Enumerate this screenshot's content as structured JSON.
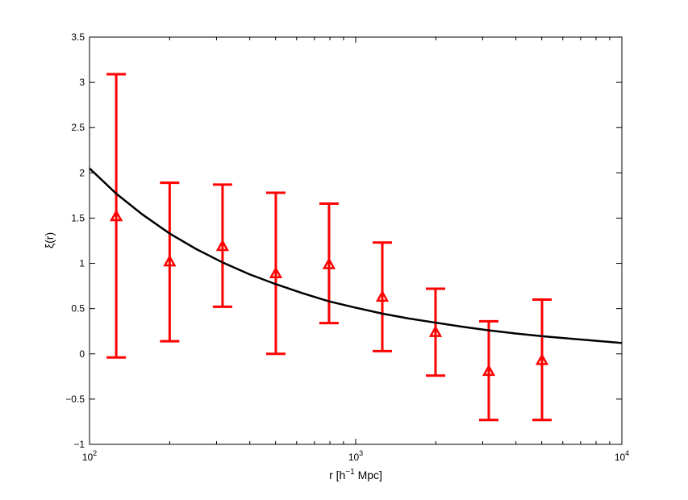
{
  "chart_data": {
    "type": "scatter",
    "title": "",
    "xlabel": {
      "main": "r  [h",
      "sup": "−1",
      "tail": " Mpc]"
    },
    "ylabel": "ξ(r)",
    "xscale": "log",
    "xlim": [
      100,
      10000
    ],
    "ylim": [
      -1,
      3.5
    ],
    "grid": false,
    "legend": "none",
    "xticks": [
      {
        "value": 100,
        "base": "10",
        "exp": "2"
      },
      {
        "value": 1000,
        "base": "10",
        "exp": "3"
      },
      {
        "value": 10000,
        "base": "10",
        "exp": "4"
      }
    ],
    "yticks": [
      {
        "value": -1,
        "label": "−1"
      },
      {
        "value": -0.5,
        "label": "−0.5"
      },
      {
        "value": 0,
        "label": "0"
      },
      {
        "value": 0.5,
        "label": "0.5"
      },
      {
        "value": 1,
        "label": "1"
      },
      {
        "value": 1.5,
        "label": "1.5"
      },
      {
        "value": 2,
        "label": "2"
      },
      {
        "value": 2.5,
        "label": "2.5"
      },
      {
        "value": 3,
        "label": "3"
      },
      {
        "value": 3.5,
        "label": "3.5"
      }
    ],
    "series": [
      {
        "kind": "errorbar",
        "marker": "triangle",
        "color": "#ff0000",
        "points": [
          {
            "x": 126,
            "y": 1.52,
            "ylow": -0.04,
            "yhigh": 3.09
          },
          {
            "x": 200,
            "y": 1.02,
            "ylow": 0.14,
            "yhigh": 1.89
          },
          {
            "x": 316,
            "y": 1.19,
            "ylow": 0.52,
            "yhigh": 1.87
          },
          {
            "x": 501,
            "y": 0.89,
            "ylow": 0.0,
            "yhigh": 1.78
          },
          {
            "x": 794,
            "y": 0.99,
            "ylow": 0.34,
            "yhigh": 1.66
          },
          {
            "x": 1259,
            "y": 0.63,
            "ylow": 0.03,
            "yhigh": 1.23
          },
          {
            "x": 1995,
            "y": 0.24,
            "ylow": -0.24,
            "yhigh": 0.72
          },
          {
            "x": 3162,
            "y": -0.19,
            "ylow": -0.73,
            "yhigh": 0.36
          },
          {
            "x": 5012,
            "y": -0.07,
            "ylow": -0.73,
            "yhigh": 0.6
          }
        ]
      },
      {
        "kind": "line",
        "color": "#000000",
        "x": [
          100,
          126,
          158,
          200,
          251,
          316,
          398,
          501,
          631,
          794,
          1000,
          1259,
          1585,
          1995,
          2512,
          3162,
          3981,
          5012,
          6310,
          7943,
          10000
        ],
        "y": [
          2.05,
          1.77,
          1.54,
          1.33,
          1.16,
          1.01,
          0.88,
          0.77,
          0.67,
          0.58,
          0.51,
          0.445,
          0.39,
          0.345,
          0.3,
          0.26,
          0.225,
          0.195,
          0.17,
          0.145,
          0.12
        ]
      }
    ]
  }
}
